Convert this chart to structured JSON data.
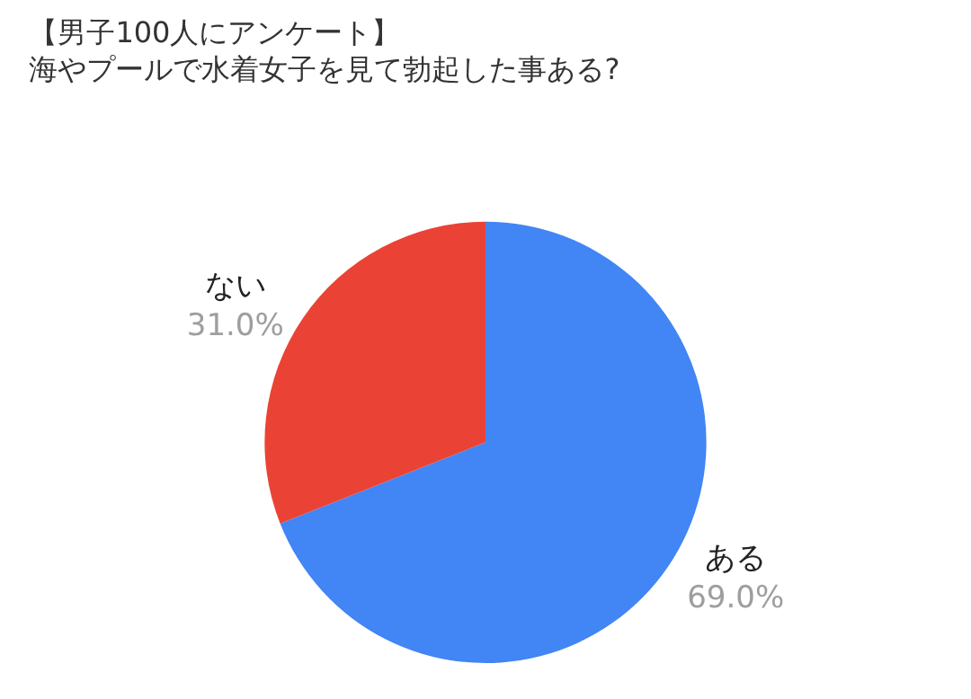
{
  "chart_data": {
    "type": "pie",
    "title": "【男子100人にアンケート】",
    "subtitle": "海やプールで水着女子を見て勃起した事ある?",
    "categories": [
      "ある",
      "ない"
    ],
    "values": [
      69.0,
      31.0
    ],
    "colors": [
      "#4285f4",
      "#ea4335"
    ],
    "value_labels": [
      "69.0%",
      "31.0%"
    ],
    "legend": false
  }
}
